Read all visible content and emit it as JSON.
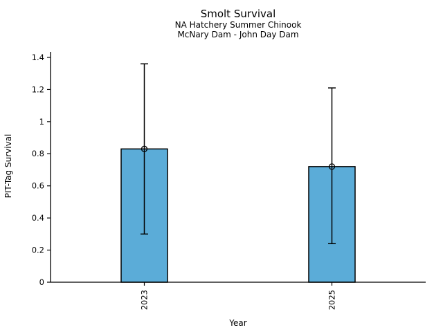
{
  "chart_data": {
    "type": "bar",
    "title": "Smolt Survival",
    "subtitle": [
      "NA Hatchery Summer Chinook",
      "McNary Dam - John Day Dam"
    ],
    "xlabel": "Year",
    "ylabel": "PIT-Tag Survival",
    "categories": [
      "2023",
      "2025"
    ],
    "values": [
      0.83,
      0.72
    ],
    "error_bars": {
      "low": [
        0.3,
        0.24
      ],
      "high": [
        1.36,
        1.21
      ]
    },
    "ylim": [
      0,
      1.4
    ],
    "yticks": [
      0,
      0.2,
      0.4,
      0.6,
      0.8,
      1,
      1.2,
      1.4
    ],
    "ytick_labels": [
      "0",
      "0.2",
      "0.4",
      "0.6",
      "0.8",
      "1",
      "1.2",
      "1.4"
    ],
    "xtick_rotation_deg": 90,
    "grid": false,
    "legend_position": "none",
    "marker": "open-circle",
    "colors": {
      "bar_fill": "#5BACD8",
      "bar_edge": "#000000",
      "error_bar": "#000000",
      "marker_edge": "#000000",
      "axis": "#000000",
      "text": "#000000"
    }
  }
}
